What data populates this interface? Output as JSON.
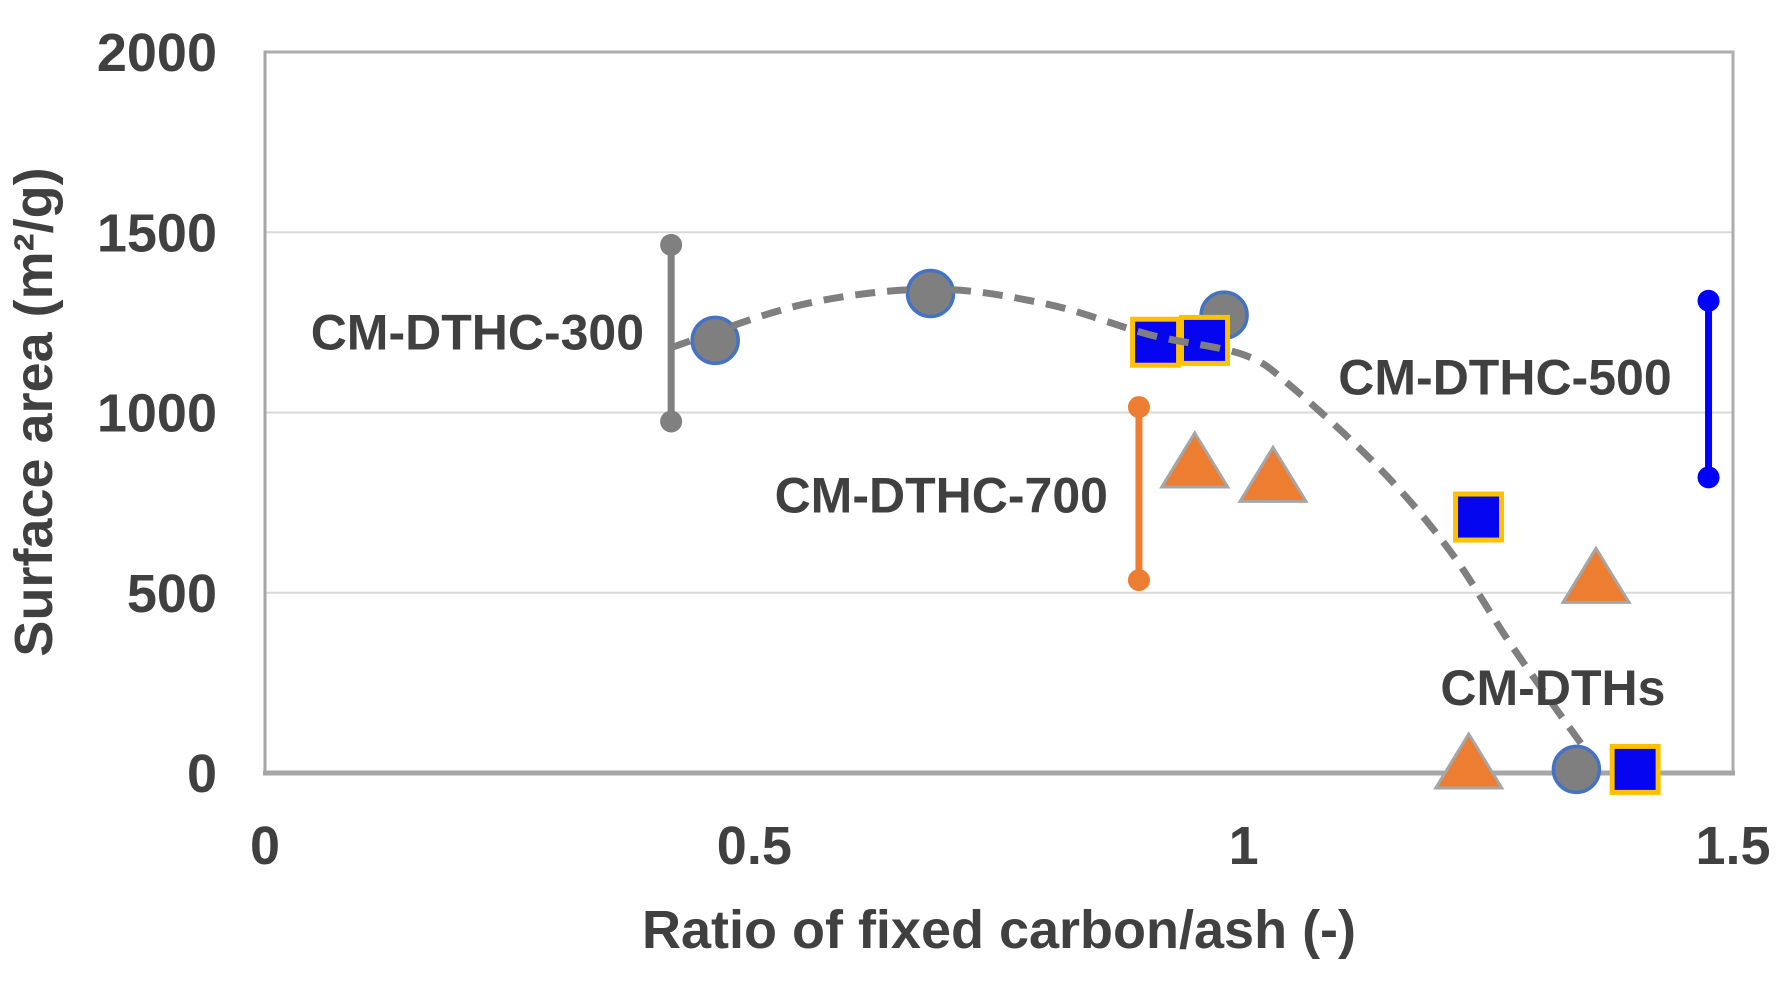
{
  "chart_data": {
    "type": "scatter",
    "title": "",
    "xlabel": "Ratio of fixed carbon/ash (-)",
    "ylabel": "Surface area (m²/g)",
    "xlim": [
      0,
      1.5
    ],
    "ylim": [
      0,
      2000
    ],
    "x_tick_labels": [
      "0",
      "0.5",
      "1",
      "1.5"
    ],
    "x_tick_values": [
      0,
      0.5,
      1,
      1.5
    ],
    "y_tick_labels": [
      "0",
      "500",
      "1000",
      "1500",
      "2000"
    ],
    "y_tick_values": [
      0,
      500,
      1000,
      1500,
      2000
    ],
    "grid": "horizontal",
    "legend_position": "none",
    "text_color": "#404040",
    "grid_color": "#D9D9D9",
    "frame_color": "#ADADAD",
    "axis_color": "#A6A6A6",
    "series": [
      {
        "name": "gray-circles",
        "marker": "circle",
        "fill": "#7F7F7F",
        "stroke": "#4472C4",
        "points": [
          [
            0.46,
            1200
          ],
          [
            0.68,
            1330
          ],
          [
            0.98,
            1270
          ],
          [
            1.34,
            10
          ]
        ]
      },
      {
        "name": "orange-triangles",
        "marker": "triangle",
        "fill": "#ED7D31",
        "stroke": "#A6A6A6",
        "points": [
          [
            0.95,
            860
          ],
          [
            1.03,
            820
          ],
          [
            1.23,
            25
          ],
          [
            1.36,
            540
          ]
        ]
      },
      {
        "name": "blue-squares",
        "marker": "square",
        "fill": "#0505F0",
        "stroke": "#FFC000",
        "points": [
          [
            0.91,
            1195
          ],
          [
            0.96,
            1200
          ],
          [
            1.24,
            710
          ],
          [
            1.4,
            10
          ]
        ]
      }
    ],
    "error_bars": [
      {
        "name": "CM-DTHC-300",
        "color": "#808080",
        "x": 0.415,
        "y_low": 975,
        "y_high": 1465
      },
      {
        "name": "CM-DTHC-700",
        "color": "#ED7D31",
        "x": 0.893,
        "y_low": 535,
        "y_high": 1015
      },
      {
        "name": "CM-DTHC-500",
        "color": "#0000FF",
        "x": 1.475,
        "y_low": 820,
        "y_high": 1310
      }
    ],
    "trend": {
      "color": "#7F7F7F",
      "style": "dashed",
      "points": [
        [
          0.415,
          1180
        ],
        [
          0.55,
          1300
        ],
        [
          0.683,
          1342
        ],
        [
          0.8,
          1300
        ],
        [
          0.905,
          1215
        ],
        [
          1.0,
          1160
        ],
        [
          1.05,
          1069
        ],
        [
          1.14,
          842
        ],
        [
          1.21,
          619
        ],
        [
          1.27,
          369
        ],
        [
          1.32,
          175
        ],
        [
          1.352,
          55
        ]
      ]
    },
    "annotations": [
      {
        "text": "CM-DTHC-300",
        "x": 0.217,
        "y": 1224
      },
      {
        "text": "CM-DTHC-700",
        "x": 0.691,
        "y": 772
      },
      {
        "text": "CM-DTHC-500",
        "x": 1.267,
        "y": 1100
      },
      {
        "text": "CM-DTHs",
        "x": 1.316,
        "y": 239
      }
    ]
  }
}
